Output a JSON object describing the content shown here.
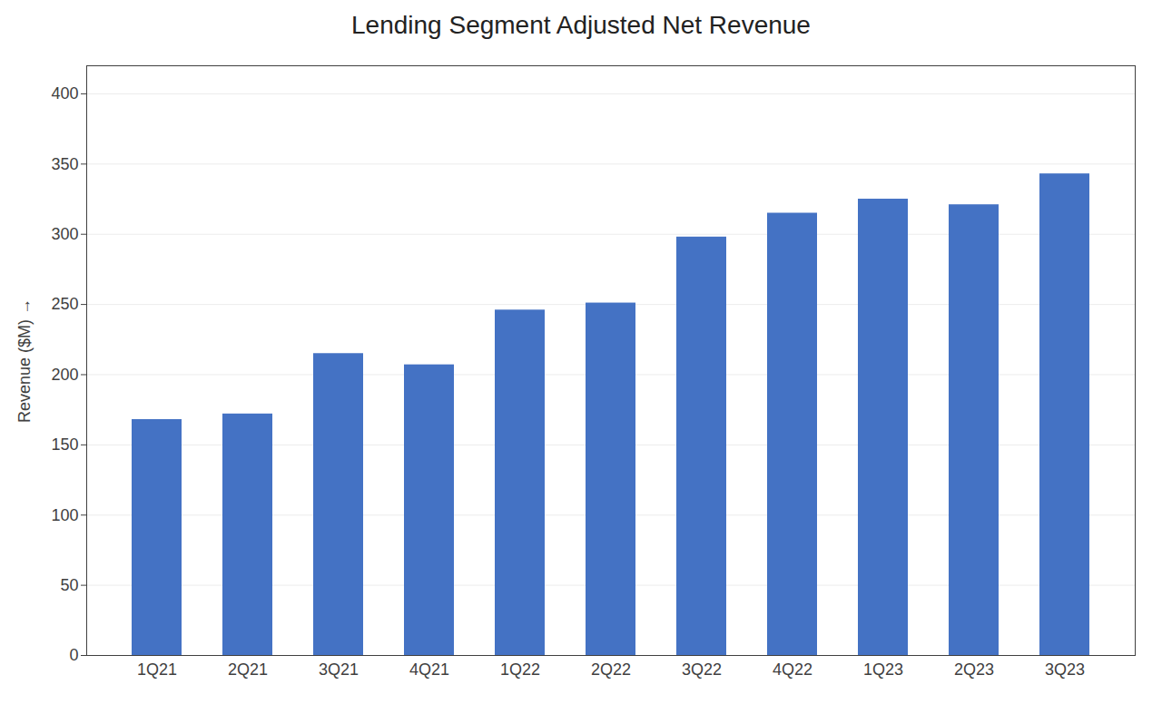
{
  "chart_data": {
    "type": "bar",
    "title": "Lending Segment Adjusted Net Revenue",
    "categories": [
      "1Q21",
      "2Q21",
      "3Q21",
      "4Q21",
      "1Q22",
      "2Q22",
      "3Q22",
      "4Q22",
      "1Q23",
      "2Q23",
      "3Q23"
    ],
    "values": [
      168,
      172,
      215,
      207,
      246,
      251,
      298,
      315,
      325,
      321,
      343
    ],
    "color": "#4472C4",
    "ylabel": "Revenue ($M)",
    "ylim": [
      0,
      420
    ],
    "yticks": [
      0,
      50,
      100,
      150,
      200,
      250,
      300,
      350,
      400
    ],
    "grid": true
  }
}
